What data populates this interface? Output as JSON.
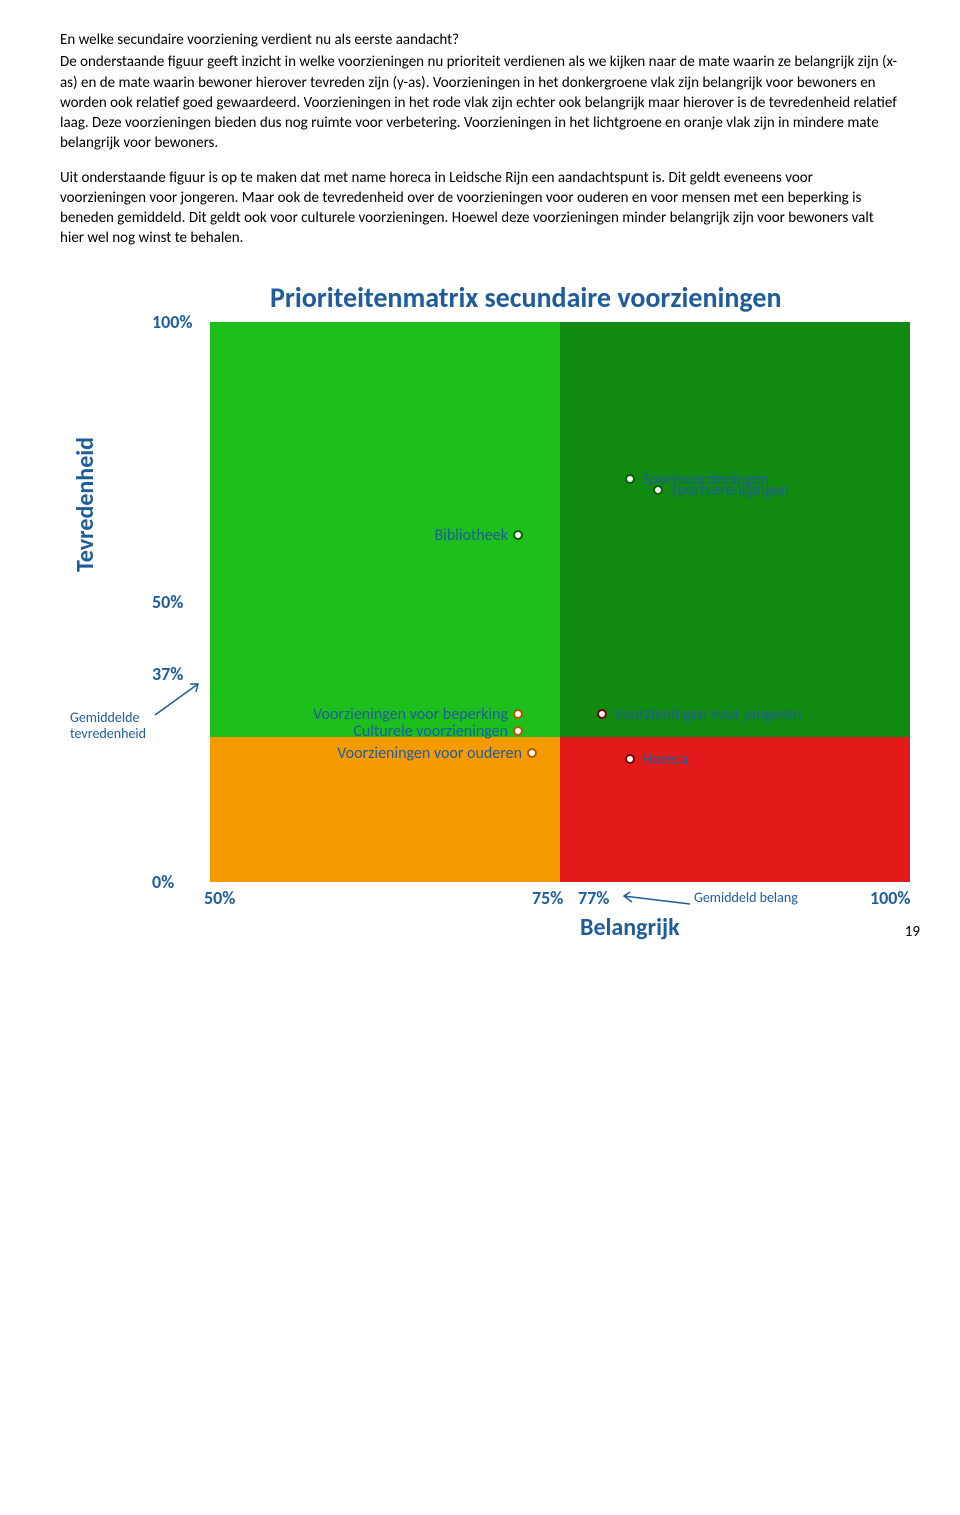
{
  "heading": "En welke secundaire voorziening verdient nu als eerste aandacht?",
  "para1": "De onderstaande figuur geeft inzicht in welke voorzieningen nu prioriteit verdienen als we kijken naar de mate waarin ze belangrijk zijn (x-as) en de mate waarin bewoner hierover tevreden zijn (y-as). Voorzieningen in het donkergroene vlak zijn belangrijk voor bewoners en worden ook relatief goed gewaardeerd. Voorzieningen in het rode vlak zijn echter ook belangrijk maar hierover is de tevredenheid relatief laag. Deze voorzieningen bieden dus nog ruimte voor verbetering. Voorzieningen in het lichtgroene en oranje vlak zijn in mindere mate belangrijk voor bewoners.",
  "para2": "Uit onderstaande figuur is op te maken dat met name horeca in Leidsche Rijn een aandachtspunt is. Dit geldt eveneens voor voorzieningen voor jongeren. Maar ook de tevredenheid over de voorzieningen voor ouderen en voor mensen met een beperking is beneden gemiddeld. Dit geldt ook voor culturele voorzieningen. Hoewel deze voorzieningen minder belangrijk zijn voor bewoners valt hier wel nog winst te behalen.",
  "chart": {
    "title": "Prioriteitenmatrix secundaire voorzieningen",
    "y_label": "Tevredenheid",
    "x_label": "Belangrijk",
    "xlim": [
      50,
      100
    ],
    "ylim": [
      0,
      100
    ],
    "x_split": 75,
    "y_split": 37,
    "y_ticks": {
      "t100": "100%",
      "t50": "50%",
      "t37": "37%",
      "t0": "0%"
    },
    "x_ticks": {
      "t50": "50%",
      "t75": "75%",
      "t77": "77%",
      "t100": "100%"
    },
    "avg_tev_label": "Gemiddelde tevredenheid",
    "avg_bel_label": "Gemiddeld belang",
    "quad_colors": {
      "ul": "#1dbf1d",
      "ur": "#118a11",
      "ll": "#f59b00",
      "lr": "#e21a1a"
    },
    "points": {
      "bibliotheek": {
        "label": "Bibliotheek",
        "x": 72,
        "y": 62,
        "quad": "green",
        "label_side": "left"
      },
      "sportvoorz": {
        "label": "Sportvoorzieningen",
        "x": 80,
        "y": 72,
        "quad": "green",
        "label_side": "right"
      },
      "sportvereen": {
        "label": "Sportverenigingen",
        "x": 82,
        "y": 70,
        "quad": "green",
        "label_side": "right"
      },
      "voor_beperking": {
        "label": "Voorzieningen voor beperking",
        "x": 72,
        "y": 30,
        "quad": "orange",
        "label_side": "left"
      },
      "culturele": {
        "label": "Culturele voorzieningen",
        "x": 72,
        "y": 27,
        "quad": "orange",
        "label_side": "left"
      },
      "voor_ouderen": {
        "label": "Voorzieningen voor ouderen",
        "x": 73,
        "y": 23,
        "quad": "orange",
        "label_side": "left"
      },
      "voor_jongeren": {
        "label": "Voorzieningen voor jongeren",
        "x": 78,
        "y": 30,
        "quad": "red",
        "label_side": "right"
      },
      "horeca": {
        "label": "Horeca",
        "x": 80,
        "y": 22,
        "quad": "red",
        "label_side": "right"
      }
    }
  },
  "page_number": "19"
}
